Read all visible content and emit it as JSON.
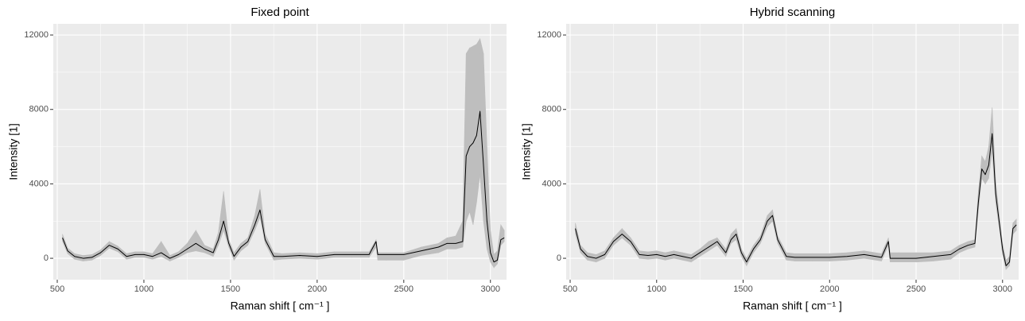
{
  "chart_data": [
    {
      "type": "line",
      "title": "Fixed point",
      "xlabel": "Raman shift [ cm⁻¹ ]",
      "ylabel": "Intensity [1]",
      "x": [
        530,
        560,
        600,
        650,
        700,
        750,
        800,
        850,
        900,
        950,
        1000,
        1050,
        1100,
        1150,
        1200,
        1250,
        1300,
        1350,
        1400,
        1430,
        1460,
        1490,
        1520,
        1560,
        1600,
        1640,
        1670,
        1700,
        1750,
        1800,
        1900,
        2000,
        2100,
        2200,
        2300,
        2340,
        2350,
        2400,
        2500,
        2600,
        2700,
        2750,
        2800,
        2840,
        2860,
        2880,
        2900,
        2920,
        2940,
        2960,
        2980,
        3000,
        3020,
        3040,
        3060,
        3080
      ],
      "values": [
        1100,
        400,
        100,
        0,
        50,
        300,
        700,
        500,
        100,
        200,
        200,
        100,
        300,
        0,
        200,
        500,
        800,
        500,
        300,
        1000,
        2000,
        800,
        100,
        600,
        900,
        1800,
        2600,
        1000,
        100,
        100,
        150,
        100,
        200,
        200,
        200,
        900,
        200,
        200,
        200,
        400,
        600,
        800,
        800,
        900,
        5500,
        6000,
        6200,
        6600,
        7900,
        5000,
        2000,
        300,
        -200,
        -100,
        1000,
        1100
      ],
      "lower": [
        900,
        250,
        -50,
        -150,
        -100,
        150,
        550,
        350,
        -50,
        50,
        50,
        -50,
        100,
        -150,
        50,
        300,
        400,
        300,
        100,
        700,
        1500,
        600,
        -100,
        400,
        700,
        1500,
        2200,
        800,
        -100,
        -50,
        0,
        -50,
        50,
        50,
        50,
        600,
        -100,
        -100,
        -100,
        150,
        300,
        500,
        500,
        600,
        2000,
        2500,
        1800,
        3000,
        4500,
        2000,
        500,
        -200,
        -500,
        -300,
        700,
        900
      ],
      "upper": [
        1300,
        550,
        250,
        150,
        200,
        450,
        900,
        650,
        250,
        350,
        350,
        250,
        900,
        150,
        350,
        800,
        1500,
        700,
        500,
        1400,
        3600,
        1000,
        300,
        800,
        1100,
        2300,
        3700,
        1300,
        300,
        250,
        300,
        250,
        350,
        350,
        350,
        1000,
        300,
        300,
        300,
        600,
        800,
        1100,
        1200,
        2000,
        11000,
        11300,
        11400,
        11500,
        11800,
        11000,
        6000,
        1500,
        200,
        400,
        1800,
        1500
      ],
      "line_color": "#000000",
      "band_color": "#bebebe",
      "background": "#ebebeb",
      "grid": true,
      "xlim": [
        477,
        3093
      ],
      "ylim": [
        -1150,
        12600
      ],
      "xticks": [
        500,
        1000,
        1500,
        2000,
        2500,
        3000
      ],
      "yticks": [
        0,
        4000,
        8000,
        12000
      ]
    },
    {
      "type": "line",
      "title": "Hybrid scanning",
      "xlabel": "Raman shift [ cm⁻¹ ]",
      "ylabel": "Intensity [1]",
      "x": [
        530,
        560,
        600,
        650,
        700,
        750,
        800,
        850,
        900,
        950,
        1000,
        1050,
        1100,
        1150,
        1200,
        1250,
        1300,
        1350,
        1400,
        1430,
        1460,
        1490,
        1520,
        1560,
        1600,
        1640,
        1670,
        1700,
        1750,
        1800,
        1900,
        2000,
        2100,
        2200,
        2300,
        2340,
        2350,
        2400,
        2500,
        2600,
        2700,
        2750,
        2800,
        2840,
        2860,
        2880,
        2900,
        2920,
        2940,
        2960,
        2980,
        3000,
        3020,
        3040,
        3060,
        3080
      ],
      "values": [
        1600,
        500,
        100,
        0,
        200,
        900,
        1300,
        900,
        200,
        150,
        200,
        100,
        200,
        100,
        0,
        300,
        600,
        900,
        300,
        1000,
        1300,
        300,
        -200,
        500,
        1000,
        2000,
        2300,
        1000,
        100,
        50,
        50,
        50,
        100,
        200,
        50,
        900,
        0,
        0,
        0,
        100,
        200,
        500,
        700,
        800,
        3000,
        4800,
        4500,
        5000,
        6700,
        3500,
        2000,
        500,
        -400,
        -200,
        1600,
        1800
      ],
      "lower": [
        1300,
        300,
        -100,
        -200,
        0,
        700,
        1100,
        700,
        0,
        -50,
        0,
        -100,
        0,
        -100,
        -200,
        100,
        400,
        700,
        100,
        800,
        1000,
        100,
        -400,
        300,
        800,
        1700,
        2000,
        800,
        -100,
        -150,
        -150,
        -150,
        -100,
        0,
        -150,
        700,
        -200,
        -200,
        -200,
        -150,
        -50,
        300,
        500,
        600,
        2600,
        4300,
        4000,
        4300,
        5800,
        3000,
        1700,
        200,
        -600,
        -400,
        1300,
        1500
      ],
      "upper": [
        1900,
        700,
        300,
        200,
        400,
        1100,
        1600,
        1100,
        400,
        350,
        400,
        300,
        400,
        300,
        200,
        500,
        900,
        1100,
        500,
        1300,
        1600,
        500,
        0,
        700,
        1200,
        2300,
        2600,
        1200,
        300,
        250,
        250,
        250,
        300,
        400,
        250,
        1100,
        300,
        300,
        300,
        300,
        400,
        700,
        900,
        1000,
        3600,
        5500,
        5200,
        6000,
        8100,
        4200,
        2400,
        800,
        -100,
        100,
        1900,
        2100
      ],
      "line_color": "#000000",
      "band_color": "#bebebe",
      "background": "#ebebeb",
      "grid": true,
      "xlim": [
        477,
        3093
      ],
      "ylim": [
        -1150,
        12600
      ],
      "xticks": [
        500,
        1000,
        1500,
        2000,
        2500,
        3000
      ],
      "yticks": [
        0,
        4000,
        8000,
        12000
      ]
    }
  ]
}
